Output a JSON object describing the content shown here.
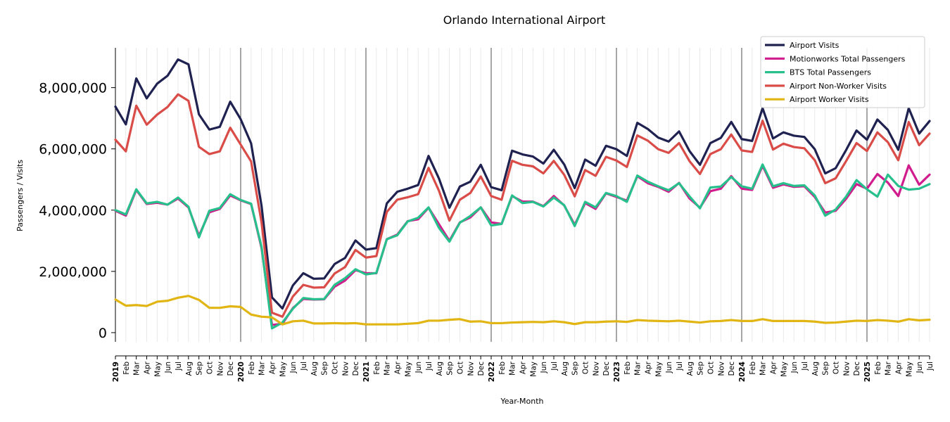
{
  "chart_data": {
    "type": "line",
    "title": "Orlando International Airport",
    "xlabel": "Year-Month",
    "ylabel": "Passengers / Visits",
    "ylim": [
      -300000,
      9300000
    ],
    "yticks": [
      0,
      2000000,
      4000000,
      6000000,
      8000000
    ],
    "ytick_labels": [
      "0",
      "2,000,000",
      "4,000,000",
      "6,000,000",
      "8,000,000"
    ],
    "x": [
      "2019",
      "Feb",
      "Mar",
      "Apr",
      "May",
      "Jun",
      "Jul",
      "Aug",
      "Sep",
      "Oct",
      "Nov",
      "Dec",
      "2020",
      "Feb",
      "Mar",
      "Apr",
      "May",
      "Jun",
      "Jul",
      "Aug",
      "Sep",
      "Oct",
      "Nov",
      "Dec",
      "2021",
      "Feb",
      "Mar",
      "Apr",
      "May",
      "Jun",
      "Jul",
      "Aug",
      "Sep",
      "Oct",
      "Nov",
      "Dec",
      "2022",
      "Feb",
      "Mar",
      "Apr",
      "May",
      "Jun",
      "Jul",
      "Aug",
      "Sep",
      "Oct",
      "Nov",
      "Dec",
      "2023",
      "Feb",
      "Mar",
      "Apr",
      "May",
      "Jun",
      "Jul",
      "Aug",
      "Sep",
      "Oct",
      "Nov",
      "Dec",
      "2024",
      "Feb",
      "Mar",
      "Apr",
      "May",
      "Jun",
      "Jul",
      "Aug",
      "Sep",
      "Oct",
      "Nov",
      "Dec",
      "2025",
      "Feb",
      "Mar",
      "Apr",
      "May",
      "Jun",
      "Jul"
    ],
    "grid": "vertical",
    "legend_position": "top-right",
    "series": [
      {
        "name": "Airport Visits",
        "color": "#1f2150",
        "values": [
          7380000,
          6800000,
          8300000,
          7650000,
          8130000,
          8390000,
          8920000,
          8760000,
          7130000,
          6630000,
          6720000,
          7540000,
          6970000,
          6180000,
          4140000,
          1150000,
          790000,
          1540000,
          1940000,
          1760000,
          1770000,
          2240000,
          2440000,
          3010000,
          2710000,
          2760000,
          4220000,
          4600000,
          4700000,
          4820000,
          5770000,
          5030000,
          4080000,
          4770000,
          4930000,
          5480000,
          4750000,
          4650000,
          5940000,
          5820000,
          5750000,
          5520000,
          5970000,
          5490000,
          4720000,
          5650000,
          5450000,
          6100000,
          5990000,
          5770000,
          6850000,
          6650000,
          6370000,
          6240000,
          6570000,
          5930000,
          5480000,
          6190000,
          6360000,
          6880000,
          6320000,
          6260000,
          7330000,
          6340000,
          6540000,
          6430000,
          6390000,
          5990000,
          5200000,
          5370000,
          5960000,
          6600000,
          6300000,
          6960000,
          6620000,
          5970000,
          7330000,
          6500000,
          6910000
        ]
      },
      {
        "name": "Motionworks Total Passengers",
        "color": "#d11c8e",
        "values": [
          3980000,
          3820000,
          4660000,
          4200000,
          4240000,
          4180000,
          4380000,
          4090000,
          3160000,
          3930000,
          4040000,
          4480000,
          4320000,
          4200000,
          2760000,
          250000,
          290000,
          800000,
          1100000,
          1080000,
          1090000,
          1500000,
          1700000,
          2040000,
          1940000,
          1940000,
          3050000,
          3200000,
          3640000,
          3700000,
          4080000,
          3540000,
          3000000,
          3600000,
          3760000,
          4090000,
          3600000,
          3550000,
          4460000,
          4280000,
          4280000,
          4130000,
          4460000,
          4150000,
          3520000,
          4230000,
          4040000,
          4550000,
          4430000,
          4310000,
          5110000,
          4880000,
          4760000,
          4600000,
          4890000,
          4380000,
          4080000,
          4620000,
          4700000,
          5110000,
          4700000,
          4660000,
          5450000,
          4730000,
          4840000,
          4760000,
          4780000,
          4430000,
          3920000,
          3980000,
          4370000,
          4850000,
          4700000,
          5180000,
          4900000,
          4460000,
          5460000,
          4830000,
          5160000
        ]
      },
      {
        "name": "BTS Total Passengers",
        "color": "#27c08c",
        "values": [
          4000000,
          3860000,
          4680000,
          4220000,
          4270000,
          4180000,
          4410000,
          4110000,
          3110000,
          3980000,
          4070000,
          4520000,
          4330000,
          4210000,
          2800000,
          140000,
          330000,
          780000,
          1130000,
          1090000,
          1100000,
          1560000,
          1780000,
          2070000,
          1900000,
          1950000,
          3050000,
          3180000,
          3630000,
          3750000,
          4090000,
          3420000,
          2970000,
          3590000,
          3810000,
          4090000,
          3500000,
          3550000,
          4480000,
          4230000,
          4270000,
          4120000,
          4410000,
          4160000,
          3480000,
          4270000,
          4090000,
          4560000,
          4460000,
          4270000,
          5130000,
          4930000,
          4780000,
          4650000,
          4880000,
          4450000,
          4060000,
          4740000,
          4770000,
          5080000,
          4780000,
          4700000,
          5490000,
          4780000,
          4880000,
          4790000,
          4810000,
          4480000,
          3820000,
          4020000,
          4440000,
          4980000,
          4680000,
          4440000,
          5160000,
          4790000,
          4670000,
          4700000,
          4850000
        ]
      },
      {
        "name": "Airport Non-Worker Visits",
        "color": "#d94c48",
        "values": [
          6300000,
          5920000,
          7410000,
          6790000,
          7120000,
          7370000,
          7780000,
          7570000,
          6070000,
          5830000,
          5920000,
          6690000,
          6140000,
          5590000,
          3600000,
          650000,
          520000,
          1180000,
          1560000,
          1470000,
          1480000,
          1930000,
          2140000,
          2700000,
          2450000,
          2500000,
          3940000,
          4340000,
          4420000,
          4520000,
          5380000,
          4630000,
          3660000,
          4340000,
          4560000,
          5100000,
          4460000,
          4340000,
          5610000,
          5480000,
          5430000,
          5200000,
          5610000,
          5150000,
          4450000,
          5310000,
          5120000,
          5740000,
          5620000,
          5410000,
          6440000,
          6270000,
          5990000,
          5870000,
          6190000,
          5600000,
          5180000,
          5830000,
          5990000,
          6470000,
          5950000,
          5900000,
          6920000,
          5980000,
          6170000,
          6060000,
          6020000,
          5630000,
          4880000,
          5040000,
          5600000,
          6190000,
          5930000,
          6540000,
          6220000,
          5630000,
          6880000,
          6120000,
          6500000
        ]
      },
      {
        "name": "Airport Worker Visits",
        "color": "#e0b514",
        "values": [
          1080000,
          880000,
          900000,
          870000,
          1010000,
          1040000,
          1140000,
          1200000,
          1070000,
          810000,
          810000,
          860000,
          840000,
          590000,
          520000,
          500000,
          270000,
          370000,
          390000,
          300000,
          300000,
          310000,
          300000,
          310000,
          270000,
          270000,
          270000,
          270000,
          290000,
          310000,
          390000,
          390000,
          420000,
          440000,
          360000,
          370000,
          310000,
          310000,
          330000,
          340000,
          350000,
          340000,
          370000,
          340000,
          280000,
          340000,
          340000,
          360000,
          370000,
          350000,
          410000,
          390000,
          380000,
          370000,
          390000,
          360000,
          330000,
          370000,
          380000,
          410000,
          380000,
          380000,
          440000,
          380000,
          380000,
          380000,
          380000,
          360000,
          320000,
          330000,
          360000,
          390000,
          380000,
          410000,
          390000,
          360000,
          440000,
          400000,
          420000
        ]
      }
    ]
  }
}
